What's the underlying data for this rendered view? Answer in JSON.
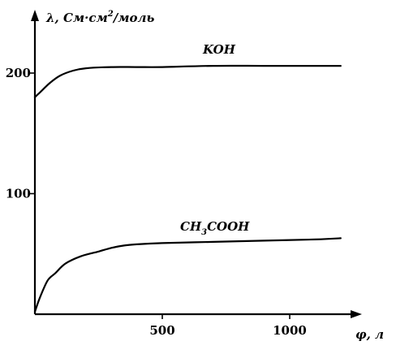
{
  "chart_data": {
    "type": "line",
    "ylabel": "λ, См·см²/моль",
    "xlabel": "φ, л",
    "xlim": [
      0,
      1300
    ],
    "ylim": [
      0,
      240
    ],
    "x_ticks": [
      500,
      1000
    ],
    "y_ticks": [
      100,
      200
    ],
    "grid": false,
    "legend": "labels on curves",
    "series": [
      {
        "name": "KOH",
        "x": [
          0,
          20,
          60,
          100,
          150,
          200,
          300,
          400,
          500,
          700,
          900,
          1100,
          1200
        ],
        "y": [
          180,
          184,
          192,
          198,
          202,
          204,
          205,
          205,
          205,
          206,
          206,
          206,
          206
        ]
      },
      {
        "name": "CH3COOH",
        "x": [
          0,
          20,
          50,
          80,
          120,
          180,
          250,
          300,
          350,
          400,
          500,
          700,
          900,
          1100,
          1200
        ],
        "y": [
          2,
          14,
          28,
          34,
          42,
          48,
          52,
          55,
          57,
          58,
          59,
          60,
          61,
          62,
          63
        ]
      }
    ]
  },
  "labels": {
    "ylabel_main": "λ, См·см",
    "ylabel_sup": "2",
    "ylabel_end": "/моль",
    "xlabel": "φ, л",
    "koh": "KOH",
    "ch3cooh_a": "CH",
    "ch3cooh_sub": "3",
    "ch3cooh_b": "COOH"
  }
}
